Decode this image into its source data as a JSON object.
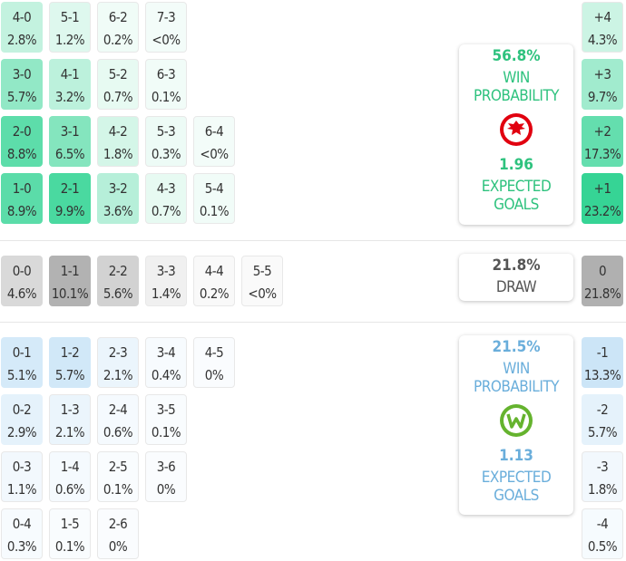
{
  "colors": {
    "home": "#2fd392",
    "away": "#a8d3f2",
    "draw": "#a8a8a8",
    "home_text": "#2ec27e",
    "away_text": "#6aaedb"
  },
  "home_rows": [
    [
      {
        "score": "4-0",
        "pct": "2.8%",
        "v": 2.8
      },
      {
        "score": "5-1",
        "pct": "1.2%",
        "v": 1.2
      },
      {
        "score": "6-2",
        "pct": "0.2%",
        "v": 0.2
      },
      {
        "score": "7-3",
        "pct": "<0%",
        "v": 0
      }
    ],
    [
      {
        "score": "3-0",
        "pct": "5.7%",
        "v": 5.7
      },
      {
        "score": "4-1",
        "pct": "3.2%",
        "v": 3.2
      },
      {
        "score": "5-2",
        "pct": "0.7%",
        "v": 0.7
      },
      {
        "score": "6-3",
        "pct": "0.1%",
        "v": 0.1
      }
    ],
    [
      {
        "score": "2-0",
        "pct": "8.8%",
        "v": 8.8
      },
      {
        "score": "3-1",
        "pct": "6.5%",
        "v": 6.5
      },
      {
        "score": "4-2",
        "pct": "1.8%",
        "v": 1.8
      },
      {
        "score": "5-3",
        "pct": "0.3%",
        "v": 0.3
      },
      {
        "score": "6-4",
        "pct": "<0%",
        "v": 0
      }
    ],
    [
      {
        "score": "1-0",
        "pct": "8.9%",
        "v": 8.9
      },
      {
        "score": "2-1",
        "pct": "9.9%",
        "v": 9.9
      },
      {
        "score": "3-2",
        "pct": "3.6%",
        "v": 3.6
      },
      {
        "score": "4-3",
        "pct": "0.7%",
        "v": 0.7
      },
      {
        "score": "5-4",
        "pct": "0.1%",
        "v": 0.1
      }
    ]
  ],
  "draw_rows": [
    [
      {
        "score": "0-0",
        "pct": "4.6%",
        "v": 4.6
      },
      {
        "score": "1-1",
        "pct": "10.1%",
        "v": 10.1
      },
      {
        "score": "2-2",
        "pct": "5.6%",
        "v": 5.6
      },
      {
        "score": "3-3",
        "pct": "1.4%",
        "v": 1.4
      },
      {
        "score": "4-4",
        "pct": "0.2%",
        "v": 0.2
      },
      {
        "score": "5-5",
        "pct": "<0%",
        "v": 0
      }
    ]
  ],
  "away_rows": [
    [
      {
        "score": "0-1",
        "pct": "5.1%",
        "v": 5.1
      },
      {
        "score": "1-2",
        "pct": "5.7%",
        "v": 5.7
      },
      {
        "score": "2-3",
        "pct": "2.1%",
        "v": 2.1
      },
      {
        "score": "3-4",
        "pct": "0.4%",
        "v": 0.4
      },
      {
        "score": "4-5",
        "pct": "0%",
        "v": 0
      }
    ],
    [
      {
        "score": "0-2",
        "pct": "2.9%",
        "v": 2.9
      },
      {
        "score": "1-3",
        "pct": "2.1%",
        "v": 2.1
      },
      {
        "score": "2-4",
        "pct": "0.6%",
        "v": 0.6
      },
      {
        "score": "3-5",
        "pct": "0.1%",
        "v": 0.1
      }
    ],
    [
      {
        "score": "0-3",
        "pct": "1.1%",
        "v": 1.1
      },
      {
        "score": "1-4",
        "pct": "0.6%",
        "v": 0.6
      },
      {
        "score": "2-5",
        "pct": "0.1%",
        "v": 0.1
      },
      {
        "score": "3-6",
        "pct": "0%",
        "v": 0
      }
    ],
    [
      {
        "score": "0-4",
        "pct": "0.3%",
        "v": 0.3
      },
      {
        "score": "1-5",
        "pct": "0.1%",
        "v": 0.1
      },
      {
        "score": "2-6",
        "pct": "0%",
        "v": 0
      }
    ]
  ],
  "margins": [
    {
      "label": "+4",
      "pct": "4.3%",
      "v": 4.3,
      "side": "home"
    },
    {
      "label": "+3",
      "pct": "9.7%",
      "v": 9.7,
      "side": "home"
    },
    {
      "label": "+2",
      "pct": "17.3%",
      "v": 17.3,
      "side": "home"
    },
    {
      "label": "+1",
      "pct": "23.2%",
      "v": 23.2,
      "side": "home"
    },
    {
      "label": "0",
      "pct": "21.8%",
      "v": 21.8,
      "side": "draw"
    },
    {
      "label": "-1",
      "pct": "13.3%",
      "v": 13.3,
      "side": "away"
    },
    {
      "label": "-2",
      "pct": "5.7%",
      "v": 5.7,
      "side": "away"
    },
    {
      "label": "-3",
      "pct": "1.8%",
      "v": 1.8,
      "side": "away"
    },
    {
      "label": "-4",
      "pct": "0.5%",
      "v": 0.5,
      "side": "away"
    }
  ],
  "home": {
    "win_pct": "56.8%",
    "win_label": "WIN PROBABILITY",
    "xg": "1.96",
    "xg_label": "EXPECTED GOALS",
    "logo": "eintracht-frankfurt-eagle"
  },
  "draw": {
    "pct": "21.8%",
    "label": "DRAW"
  },
  "away": {
    "win_pct": "21.5%",
    "win_label": "WIN PROBABILITY",
    "xg": "1.13",
    "xg_label": "EXPECTED GOALS",
    "logo": "vfl-wolfsburg-w"
  }
}
